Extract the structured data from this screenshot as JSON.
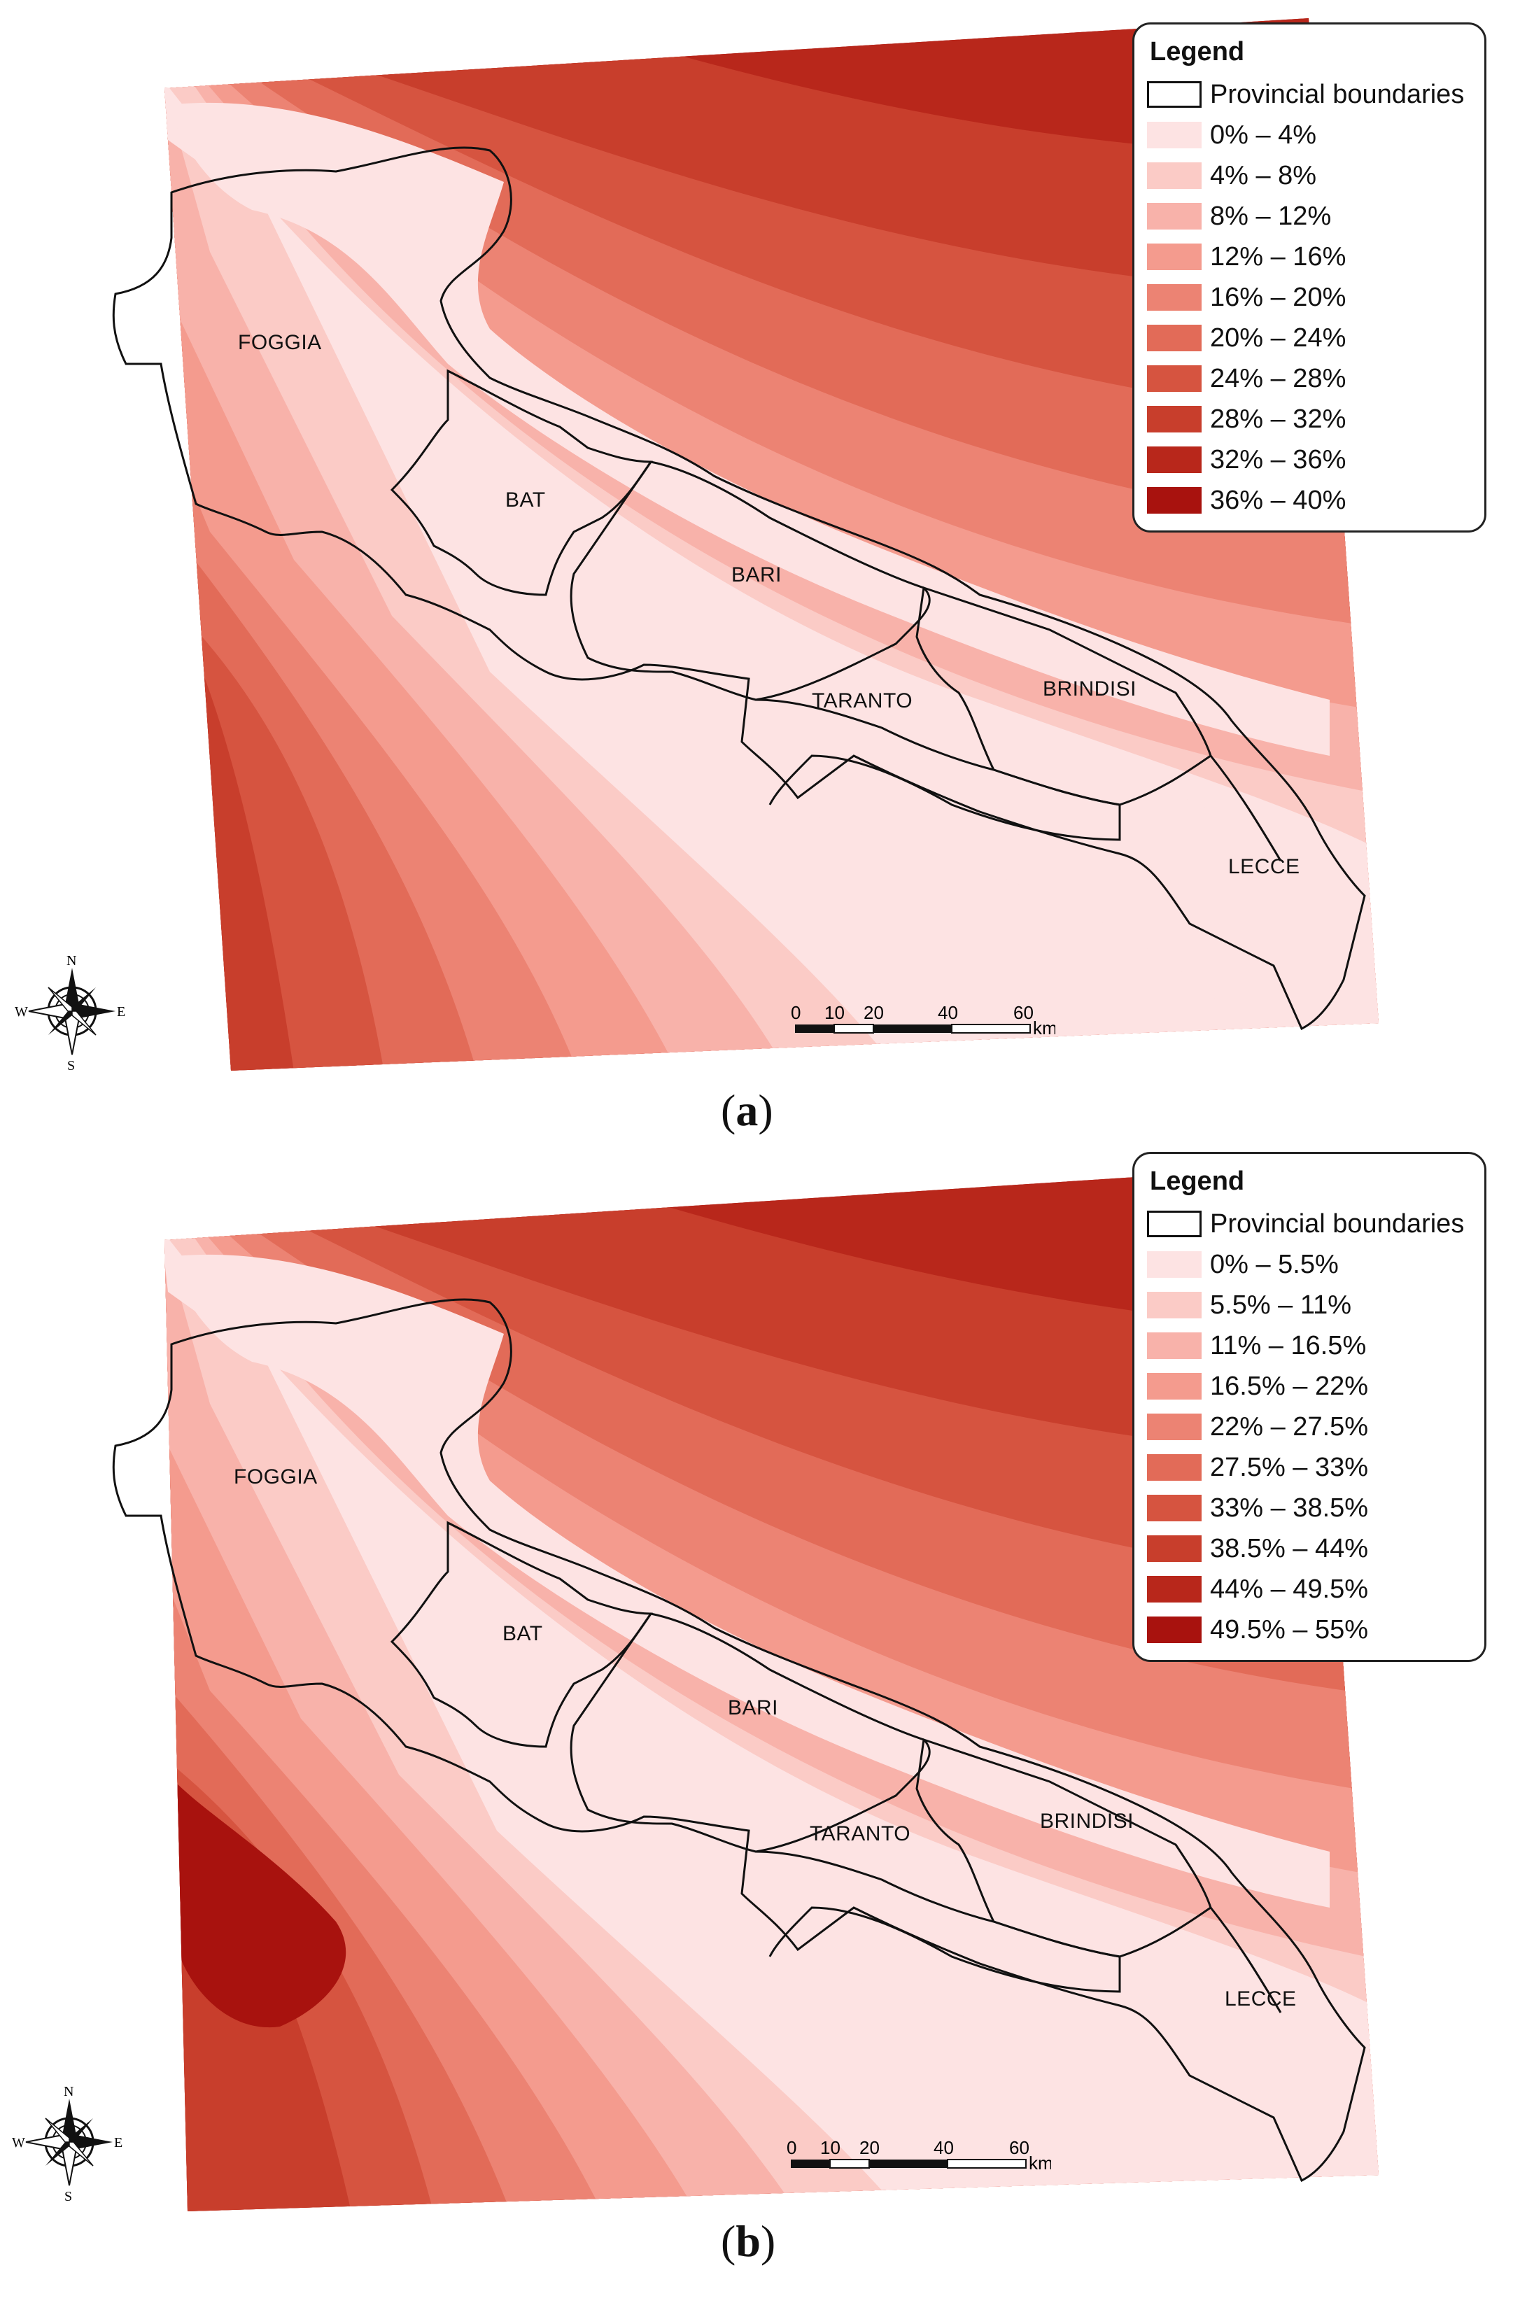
{
  "panels": [
    {
      "id": "a",
      "caption_letter": "a",
      "legend": {
        "title": "Legend",
        "boundary_label": "Provincial boundaries",
        "classes": [
          "0% – 4%",
          "4% – 8%",
          "8% – 12%",
          "12% – 16%",
          "16% – 20%",
          "20% – 24%",
          "24% – 28%",
          "28% – 32%",
          "32% – 36%",
          "36% – 40%"
        ]
      }
    },
    {
      "id": "b",
      "caption_letter": "b",
      "legend": {
        "title": "Legend",
        "boundary_label": "Provincial boundaries",
        "classes": [
          "0% – 5.5%",
          "5.5% – 11%",
          "11% – 16.5%",
          "16.5% – 22%",
          "22% – 27.5%",
          "27.5% – 33%",
          "33% – 38.5%",
          "38.5% – 44%",
          "44% – 49.5%",
          "49.5% – 55%"
        ]
      }
    }
  ],
  "class_colors": [
    "#fde3e3",
    "#fbcbc6",
    "#f8b2aa",
    "#f49b8e",
    "#ec8373",
    "#e26b58",
    "#d65440",
    "#c83e2c",
    "#b8271b",
    "#a8120e"
  ],
  "provinces": {
    "foggia": "FOGGIA",
    "bat": "BAT",
    "bari": "BARI",
    "taranto": "TARANTO",
    "brindisi": "BRINDISI",
    "lecce": "LECCE"
  },
  "scale": {
    "ticks": [
      "0",
      "10",
      "20",
      "40",
      "60"
    ],
    "unit": "km"
  },
  "compass": {
    "n": "N",
    "s": "S",
    "e": "E",
    "w": "W"
  }
}
